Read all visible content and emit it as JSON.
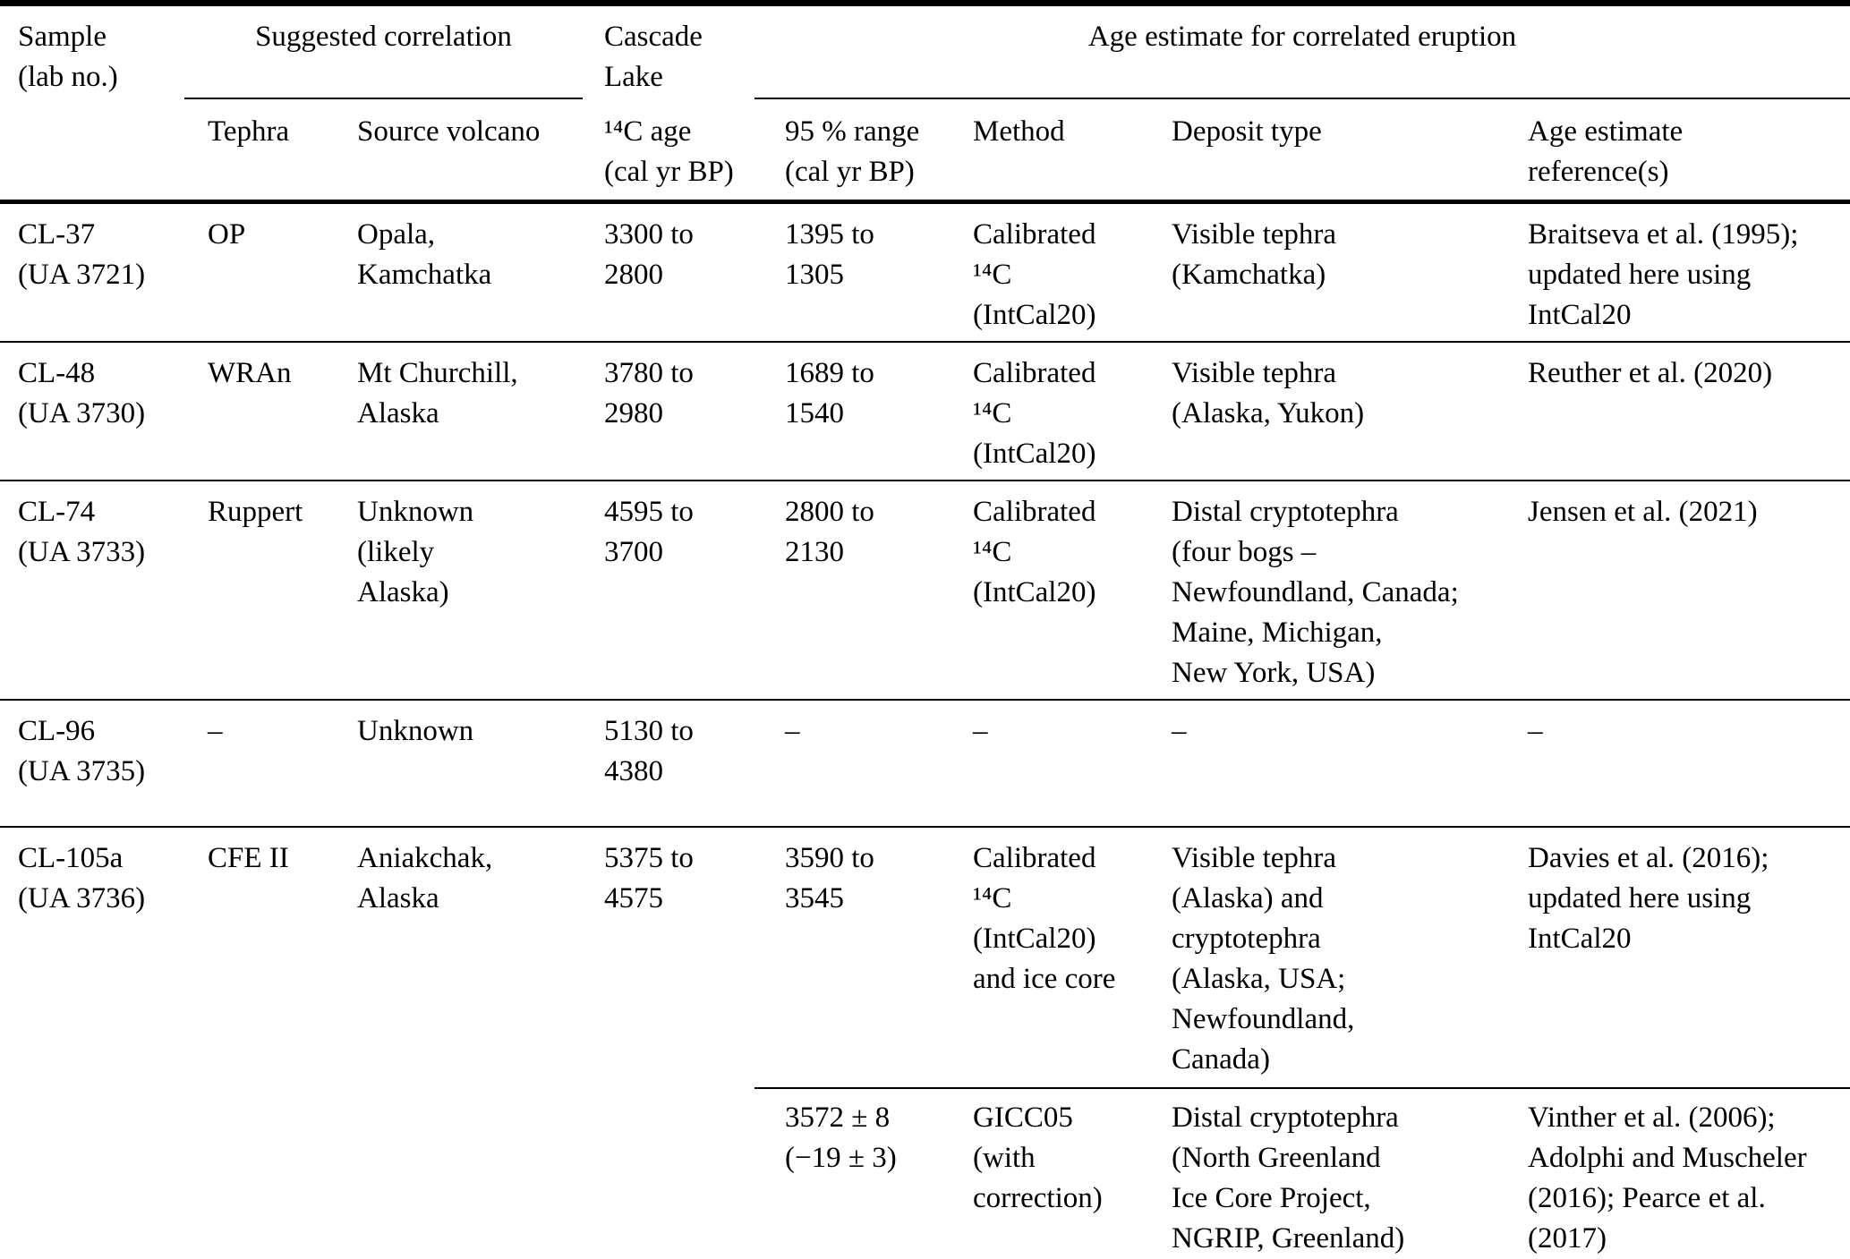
{
  "colors": {
    "background": "#ffffff",
    "text": "#000000",
    "rule": "#000000"
  },
  "table": {
    "header": {
      "sample": "Sample\n(lab no.)",
      "suggested_correlation_group": "Suggested correlation",
      "cascade_lake_group": "Cascade\nLake",
      "age_estimate_group": "Age estimate for correlated eruption",
      "columns": {
        "tephra": "Tephra",
        "source_volcano": "Source volcano",
        "c14_age": "¹⁴C age\n(cal yr BP)",
        "range_95": "95 % range\n(cal yr BP)",
        "method": "Method",
        "deposit_type": "Deposit type",
        "reference": "Age estimate\nreference(s)"
      }
    },
    "rows": [
      {
        "sample": "CL-37\n(UA 3721)",
        "tephra": "OP",
        "source_volcano": "Opala,\nKamchatka",
        "c14_age": "3300 to\n2800",
        "range_95": "1395 to\n1305",
        "method": "Calibrated\n¹⁴C\n(IntCal20)",
        "deposit_type": "Visible tephra\n(Kamchatka)",
        "reference": "Braitseva et al. (1995);\nupdated here using\nIntCal20"
      },
      {
        "sample": "CL-48\n(UA 3730)",
        "tephra": "WRAn",
        "source_volcano": "Mt Churchill,\nAlaska",
        "c14_age": "3780 to\n2980",
        "range_95": "1689 to\n1540",
        "method": "Calibrated\n¹⁴C\n(IntCal20)",
        "deposit_type": "Visible tephra\n(Alaska, Yukon)",
        "reference": "Reuther et al. (2020)"
      },
      {
        "sample": "CL-74\n(UA 3733)",
        "tephra": "Ruppert",
        "source_volcano": "Unknown\n(likely\nAlaska)",
        "c14_age": "4595 to\n3700",
        "range_95": "2800 to\n2130",
        "method": "Calibrated\n¹⁴C\n(IntCal20)",
        "deposit_type": "Distal cryptotephra\n(four bogs –\nNewfoundland, Canada;\nMaine, Michigan,\nNew York, USA)",
        "reference": "Jensen et al. (2021)"
      },
      {
        "sample": "CL-96\n(UA 3735)",
        "tephra": "–",
        "source_volcano": "Unknown",
        "c14_age": "5130 to\n4380",
        "range_95": "–",
        "method": "–",
        "deposit_type": "–",
        "reference": "–"
      },
      {
        "sample": "CL-105a\n(UA 3736)",
        "tephra": "CFE II",
        "source_volcano": "Aniakchak,\nAlaska",
        "c14_age": "5375 to\n4575",
        "range_95": "3590 to\n3545",
        "method": "Calibrated\n¹⁴C\n(IntCal20)\nand ice core",
        "deposit_type": "Visible tephra\n(Alaska) and\ncryptotephra\n(Alaska, USA;\nNewfoundland,\nCanada)",
        "reference": "Davies et al. (2016);\nupdated here using\nIntCal20",
        "sub": {
          "range_95": "3572 ± 8\n(−19 ± 3)",
          "method": "GICC05\n(with\ncorrection)",
          "deposit_type": "Distal cryptotephra\n(North Greenland\nIce Core Project,\nNGRIP, Greenland)",
          "reference": "Vinther et al. (2006);\nAdolphi and Muscheler\n(2016); Pearce et al.\n(2017)"
        }
      }
    ]
  }
}
